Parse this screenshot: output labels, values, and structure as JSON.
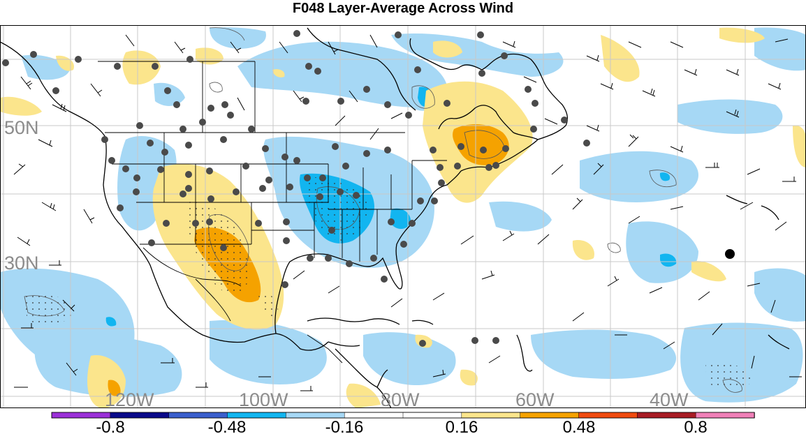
{
  "title": "F048 Layer-Average Across Wind",
  "map": {
    "lat_labels": [
      "50N",
      "30N"
    ],
    "lon_labels": [
      "120W",
      "100W",
      "80W",
      "60W",
      "40W"
    ]
  },
  "colorbar": {
    "tick_labels": [
      "-0.8",
      "-0.48",
      "-0.16",
      "0.16",
      "0.48",
      "0.8"
    ],
    "colors": [
      "#9b30d8",
      "#0a0a8a",
      "#3a5fcd",
      "#12b5f0",
      "#a6d8f5",
      "#ffffff",
      "#ffffff",
      "#fbe58c",
      "#f5a200",
      "#f04b10",
      "#a81c24",
      "#f080b8"
    ]
  },
  "palette": {
    "light_blue": "#a6d8f5",
    "mid_blue": "#12b5f0",
    "light_yellow": "#fbe58c",
    "orange": "#f5a200",
    "station": "#4a4a4a",
    "grid": "#c8c8c8",
    "label_gray": "#8c8c8c"
  }
}
